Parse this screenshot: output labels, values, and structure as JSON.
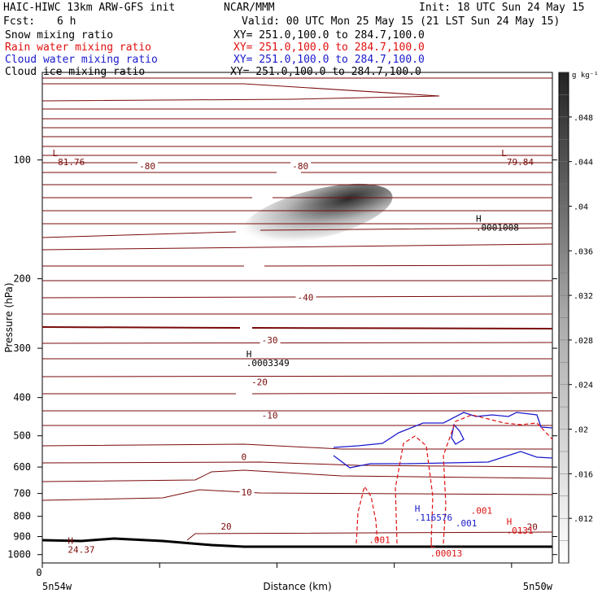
{
  "header": {
    "title": "HAIC-HIWC 13km ARW-GFS init",
    "source": "NCAR/MMM",
    "init": "Init: 18 UTC Sun 24 May 15",
    "fcst_label": "Fcst:",
    "fcst_value": "6 h",
    "valid": "Valid: 00 UTC Mon 25 May 15 (21 LST Sun 24 May 15)",
    "fields": [
      {
        "name": "Snow mixing ratio",
        "xy": "XY= 251.0,100.0 to 284.7,100.0",
        "color": "#000000"
      },
      {
        "name": "Rain water mixing ratio",
        "xy": "XY= 251.0,100.0 to 284.7,100.0",
        "color": "#e01010"
      },
      {
        "name": "Cloud water mixing ratio",
        "xy": "XY= 251.0,100.0 to 284.7,100.0",
        "color": "#1a1acc"
      },
      {
        "name": "Cloud ice mixing ratio",
        "xy": "XY= 251.0,100.0 to 284.7,100.0",
        "color": "#000000"
      }
    ]
  },
  "colors": {
    "temperature_contour": "#7a0a0a",
    "rain_contour": "#e01010",
    "cloud_water_contour": "#1a1acc",
    "terrain": "#000000"
  },
  "chart_data": {
    "type": "heatmap",
    "xlabel": "Distance (km)",
    "ylabel": "Pressure (hPa)",
    "x_ticks": [
      "0"
    ],
    "x_endpoints": [
      "5n54w",
      "5n50w"
    ],
    "y_ticks": [
      100,
      200,
      300,
      400,
      500,
      600,
      700,
      800,
      900,
      1000
    ],
    "ylim": [
      1050,
      60
    ],
    "y_scale": "log",
    "colorbar": {
      "unit": "g kg⁻¹",
      "ticks": [
        ".012",
        ".016",
        ".02",
        ".024",
        ".028",
        ".032",
        ".036",
        ".04",
        ".044",
        ".048"
      ],
      "range": [
        0.008,
        0.052
      ]
    },
    "temperature_contour_labels": [
      {
        "text": "-80",
        "p": 105,
        "x": 0.19
      },
      {
        "text": "-80",
        "p": 105,
        "x": 0.49
      },
      {
        "text": "-40",
        "p": 226,
        "x": 0.5
      },
      {
        "text": "-30",
        "p": 290,
        "x": 0.43
      },
      {
        "text": "-20",
        "p": 370,
        "x": 0.41
      },
      {
        "text": "-10",
        "p": 450,
        "x": 0.43
      },
      {
        "text": "0",
        "p": 573,
        "x": 0.39
      },
      {
        "text": "10",
        "p": 705,
        "x": 0.39
      },
      {
        "text": "20",
        "p": 860,
        "x": 0.35
      },
      {
        "text": "20",
        "p": 862,
        "x": 0.95
      }
    ],
    "extrema": [
      {
        "mark": "L",
        "value": "-81.76",
        "p": 103,
        "x": 0.02
      },
      {
        "mark": "L",
        "value": "-79.84",
        "p": 103,
        "x": 0.9
      },
      {
        "mark": "H",
        "value": ".0001008",
        "p": 151,
        "x": 0.85
      },
      {
        "mark": "H",
        "value": ".0003349",
        "p": 333,
        "x": 0.4
      },
      {
        "mark": "H",
        "value": "24.37",
        "p": 990,
        "x": 0.05
      },
      {
        "mark": "H",
        "value": ".0131",
        "p": 885,
        "x": 0.91
      },
      {
        "mark": "H",
        "value": ".116576",
        "p": 820,
        "x": 0.73
      },
      {
        "mark": "L",
        "value": ".00013",
        "p": 1010,
        "x": 0.76
      }
    ],
    "rain_contour_labels": [
      {
        "text": ".001",
        "p": 788,
        "x": 0.84
      },
      {
        "text": ".001",
        "p": 935,
        "x": 0.64
      }
    ],
    "cloud_water_contour_labels": [
      {
        "text": ".001",
        "p": 848,
        "x": 0.81
      }
    ],
    "snow_maximum": {
      "p": 310,
      "x": 0.61,
      "value": 0.048
    },
    "grid": false
  }
}
